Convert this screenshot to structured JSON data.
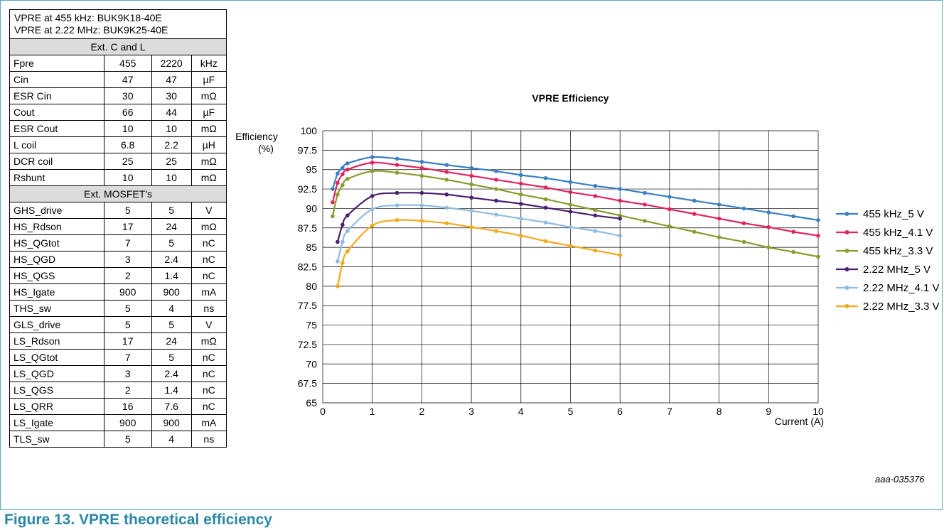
{
  "table": {
    "header_lines": [
      "VPRE at 455 kHz: BUK9K18-40E",
      "VPRE at 2.22 MHz: BUK9K25-40E"
    ],
    "sections": [
      {
        "title": "Ext. C and L",
        "rows": [
          [
            "Fpre",
            "455",
            "2220",
            "kHz"
          ],
          [
            "Cin",
            "47",
            "47",
            "µF"
          ],
          [
            "ESR Cin",
            "30",
            "30",
            "mΩ"
          ],
          [
            "Cout",
            "66",
            "44",
            "µF"
          ],
          [
            "ESR Cout",
            "10",
            "10",
            "mΩ"
          ],
          [
            "L coil",
            "6.8",
            "2.2",
            "µH"
          ],
          [
            "DCR coil",
            "25",
            "25",
            "mΩ"
          ],
          [
            "Rshunt",
            "10",
            "10",
            "mΩ"
          ]
        ]
      },
      {
        "title": "Ext. MOSFET's",
        "rows": [
          [
            "GHS_drive",
            "5",
            "5",
            "V"
          ],
          [
            "HS_Rdson",
            "17",
            "24",
            "mΩ"
          ],
          [
            "HS_QGtot",
            "7",
            "5",
            "nC"
          ],
          [
            "HS_QGD",
            "3",
            "2.4",
            "nC"
          ],
          [
            "HS_QGS",
            "2",
            "1.4",
            "nC"
          ],
          [
            "HS_Igate",
            "900",
            "900",
            "mA"
          ],
          [
            "THS_sw",
            "5",
            "4",
            "ns"
          ],
          [
            "GLS_drive",
            "5",
            "5",
            "V"
          ],
          [
            "LS_Rdson",
            "17",
            "24",
            "mΩ"
          ],
          [
            "LS_QGtot",
            "7",
            "5",
            "nC"
          ],
          [
            "LS_QGD",
            "3",
            "2.4",
            "nC"
          ],
          [
            "LS_QGS",
            "2",
            "1.4",
            "nC"
          ],
          [
            "LS_QRR",
            "16",
            "7.6",
            "nC"
          ],
          [
            "LS_Igate",
            "900",
            "900",
            "mA"
          ],
          [
            "TLS_sw",
            "5",
            "4",
            "ns"
          ]
        ]
      }
    ]
  },
  "chart_data": {
    "type": "line",
    "title": "VPRE Efficiency",
    "ylabel_lines": [
      "Efficiency",
      "(%)"
    ],
    "xlabel": "Current (A)",
    "xlim": [
      0,
      10
    ],
    "ylim": [
      65,
      100
    ],
    "xticks": [
      "0",
      "1",
      "2",
      "3",
      "4",
      "5",
      "6",
      "7",
      "8",
      "9",
      "10"
    ],
    "yticks": [
      "65",
      "67.5",
      "70",
      "72.5",
      "75",
      "77.5",
      "80",
      "82.5",
      "85",
      "87.5",
      "90",
      "92.5",
      "95",
      "97.5",
      "100"
    ],
    "grid": true,
    "legend_position": "right",
    "series": [
      {
        "name": "455 kHz_5 V",
        "color": "#3a7fc4",
        "x": [
          0.2,
          0.3,
          0.4,
          0.5,
          1,
          1.5,
          2,
          2.5,
          3,
          3.5,
          4,
          4.5,
          5,
          5.5,
          6,
          6.5,
          7,
          7.5,
          8,
          8.5,
          9,
          9.5,
          10
        ],
        "y": [
          92.5,
          94.5,
          95.2,
          95.8,
          96.6,
          96.4,
          96.0,
          95.6,
          95.2,
          94.8,
          94.3,
          93.9,
          93.4,
          92.9,
          92.5,
          92.0,
          91.5,
          91.0,
          90.5,
          90.0,
          89.5,
          89.0,
          88.5
        ]
      },
      {
        "name": "455 kHz_4.1 V",
        "color": "#e0245e",
        "x": [
          0.2,
          0.3,
          0.4,
          0.5,
          1,
          1.5,
          2,
          2.5,
          3,
          3.5,
          4,
          4.5,
          5,
          5.5,
          6,
          6.5,
          7,
          7.5,
          8,
          8.5,
          9,
          9.5,
          10
        ],
        "y": [
          90.8,
          93.3,
          94.4,
          95.0,
          95.9,
          95.6,
          95.2,
          94.7,
          94.2,
          93.7,
          93.2,
          92.7,
          92.1,
          91.6,
          91.0,
          90.5,
          89.9,
          89.3,
          88.7,
          88.1,
          87.6,
          87.0,
          86.5
        ]
      },
      {
        "name": "455 kHz_3.3 V",
        "color": "#8c9a2e",
        "x": [
          0.2,
          0.3,
          0.4,
          0.5,
          1,
          1.5,
          2,
          2.5,
          3,
          3.5,
          4,
          4.5,
          5,
          5.5,
          6,
          6.5,
          7,
          7.5,
          8,
          8.5,
          9,
          9.5,
          10
        ],
        "y": [
          89.0,
          91.8,
          93.0,
          93.8,
          94.8,
          94.6,
          94.2,
          93.7,
          93.1,
          92.5,
          91.8,
          91.2,
          90.5,
          89.8,
          89.1,
          88.4,
          87.7,
          87.0,
          86.3,
          85.7,
          85.0,
          84.4,
          83.8
        ]
      },
      {
        "name": "2.22 MHz_5 V",
        "color": "#4a1f6e",
        "x": [
          0.3,
          0.4,
          0.5,
          1,
          1.5,
          2,
          2.5,
          3,
          3.5,
          4,
          4.5,
          5,
          5.5,
          6
        ],
        "y": [
          85.7,
          87.9,
          89.1,
          91.6,
          92.0,
          92.0,
          91.8,
          91.4,
          91.0,
          90.6,
          90.1,
          89.6,
          89.1,
          88.7
        ]
      },
      {
        "name": "2.22 MHz_4.1 V",
        "color": "#8fbbe0",
        "x": [
          0.3,
          0.4,
          0.5,
          1,
          1.5,
          2,
          2.5,
          3,
          3.5,
          4,
          4.5,
          5,
          5.5,
          6
        ],
        "y": [
          83.2,
          85.7,
          87.1,
          89.9,
          90.4,
          90.4,
          90.1,
          89.7,
          89.2,
          88.7,
          88.2,
          87.6,
          87.1,
          86.5
        ]
      },
      {
        "name": "2.22 MHz_3.3 V",
        "color": "#f5a81c",
        "x": [
          0.3,
          0.4,
          0.5,
          1,
          1.5,
          2,
          2.5,
          3,
          3.5,
          4,
          4.5,
          5,
          5.5,
          6
        ],
        "y": [
          80.0,
          83.0,
          84.5,
          87.8,
          88.5,
          88.4,
          88.1,
          87.6,
          87.1,
          86.5,
          85.8,
          85.2,
          84.6,
          84.0
        ]
      }
    ]
  },
  "figure": {
    "caption": "Figure 13.  VPRE theoretical efficiency",
    "code": "aaa-035376"
  }
}
